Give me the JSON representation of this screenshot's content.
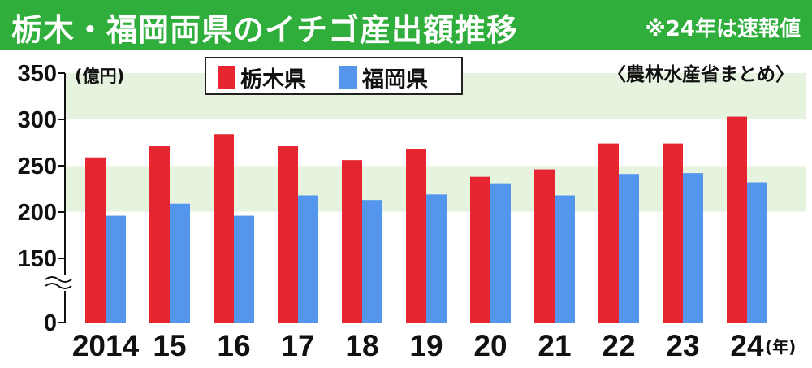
{
  "title": "栃木・福岡両県のイチゴ産出額推移",
  "note": "※24年は速報値",
  "source": "〈農林水産省まとめ〉",
  "colors": {
    "title_bg": "#2fae3c",
    "band": "#e6f4df",
    "tochigi": "#e52630",
    "fukuoka": "#5496ee"
  },
  "chart_data": {
    "type": "bar",
    "categories": [
      "2014",
      "15",
      "16",
      "17",
      "18",
      "19",
      "20",
      "21",
      "22",
      "23",
      "24"
    ],
    "x_unit": "(年)",
    "y_unit": "(億円)",
    "y_ticks": [
      "350",
      "300",
      "250",
      "200",
      "150",
      "0"
    ],
    "y_axis_break": true,
    "ylim": [
      0,
      350
    ],
    "legend_position": "top",
    "series": [
      {
        "name": "栃木県",
        "color": "#e52630",
        "values": [
          259,
          271,
          284,
          271,
          256,
          268,
          238,
          246,
          274,
          274,
          303
        ]
      },
      {
        "name": "福岡県",
        "color": "#5496ee",
        "values": [
          196,
          209,
          196,
          218,
          213,
          219,
          231,
          218,
          241,
          242,
          232
        ]
      }
    ]
  }
}
